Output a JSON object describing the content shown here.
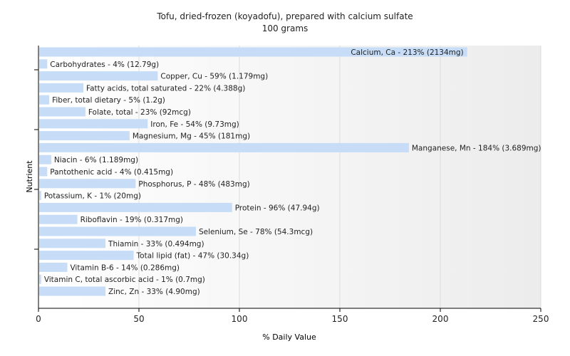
{
  "chart_data": {
    "type": "bar",
    "orientation": "horizontal",
    "title": "Tofu, dried-frozen (koyadofu), prepared with calcium sulfate",
    "subtitle": "100 grams",
    "xlabel": "% Daily Value",
    "ylabel": "Nutrient",
    "xlim": [
      0,
      250
    ],
    "xticks": [
      "0",
      "50",
      "100",
      "150",
      "200",
      "250"
    ],
    "grid": "vertical",
    "bar_color": "#c6dcf7",
    "categories": [
      "Calcium, Ca",
      "Carbohydrates",
      "Copper, Cu",
      "Fatty acids, total saturated",
      "Fiber, total dietary",
      "Folate, total",
      "Iron, Fe",
      "Magnesium, Mg",
      "Manganese, Mn",
      "Niacin",
      "Pantothenic acid",
      "Phosphorus, P",
      "Potassium, K",
      "Protein",
      "Riboflavin",
      "Selenium, Se",
      "Thiamin",
      "Total lipid (fat)",
      "Vitamin B-6",
      "Vitamin C, total ascorbic acid",
      "Zinc, Zn"
    ],
    "values": [
      213,
      4,
      59,
      22,
      5,
      23,
      54,
      45,
      184,
      6,
      4,
      48,
      1,
      96,
      19,
      78,
      33,
      47,
      14,
      1,
      33
    ],
    "labels": [
      "Calcium, Ca - 213% (2134mg)",
      "Carbohydrates - 4% (12.79g)",
      "Copper, Cu - 59% (1.179mg)",
      "Fatty acids, total saturated - 22% (4.388g)",
      "Fiber, total dietary - 5% (1.2g)",
      "Folate, total - 23% (92mcg)",
      "Iron, Fe - 54% (9.73mg)",
      "Magnesium, Mg - 45% (181mg)",
      "Manganese, Mn - 184% (3.689mg)",
      "Niacin - 6% (1.189mg)",
      "Pantothenic acid - 4% (0.415mg)",
      "Phosphorus, P - 48% (483mg)",
      "Potassium, K - 1% (20mg)",
      "Protein - 96% (47.94g)",
      "Riboflavin - 19% (0.317mg)",
      "Selenium, Se - 78% (54.3mcg)",
      "Thiamin - 33% (0.494mg)",
      "Total lipid (fat) - 47% (30.34g)",
      "Vitamin B-6 - 14% (0.286mg)",
      "Vitamin C, total ascorbic acid - 1% (0.7mg)",
      "Zinc, Zn - 33% (4.90mg)"
    ]
  }
}
